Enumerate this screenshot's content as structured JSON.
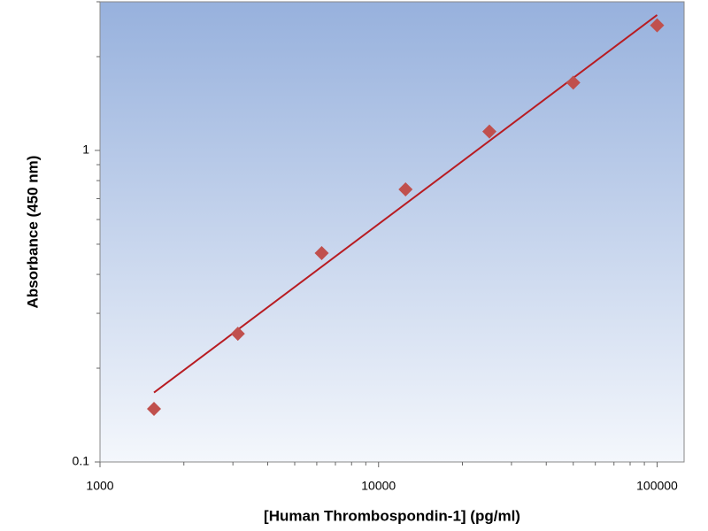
{
  "chart_data": {
    "type": "scatter",
    "x_label": "[Human Thrombospondin-1] (pg/ml)",
    "y_label": "Absorbance (450 nm)",
    "x_log": true,
    "y_log": true,
    "xlim": [
      1000,
      125000
    ],
    "ylim": [
      0.1,
      3
    ],
    "xticks": [
      1000,
      10000,
      100000
    ],
    "yticks": [
      0.1,
      1
    ],
    "x_minor_ticks": [
      2000,
      3000,
      4000,
      5000,
      6000,
      7000,
      8000,
      9000,
      20000,
      30000,
      40000,
      50000,
      60000,
      70000,
      80000,
      90000
    ],
    "y_minor_ticks": [
      0.2,
      0.3,
      0.4,
      0.5,
      0.6,
      0.7,
      0.8,
      0.9,
      2,
      3
    ],
    "series": [
      {
        "x": [
          1562.5,
          3125,
          6250,
          12500,
          25000,
          50000,
          100000
        ],
        "values": [
          0.148,
          0.258,
          0.468,
          0.75,
          1.15,
          1.65,
          2.52
        ],
        "color": "#c0504d",
        "marker": "diamond"
      },
      {
        "x": [
          1562.5,
          100000
        ],
        "values": [
          0.167,
          2.72
        ],
        "color": "#b81c22",
        "marker": "line"
      }
    ]
  }
}
